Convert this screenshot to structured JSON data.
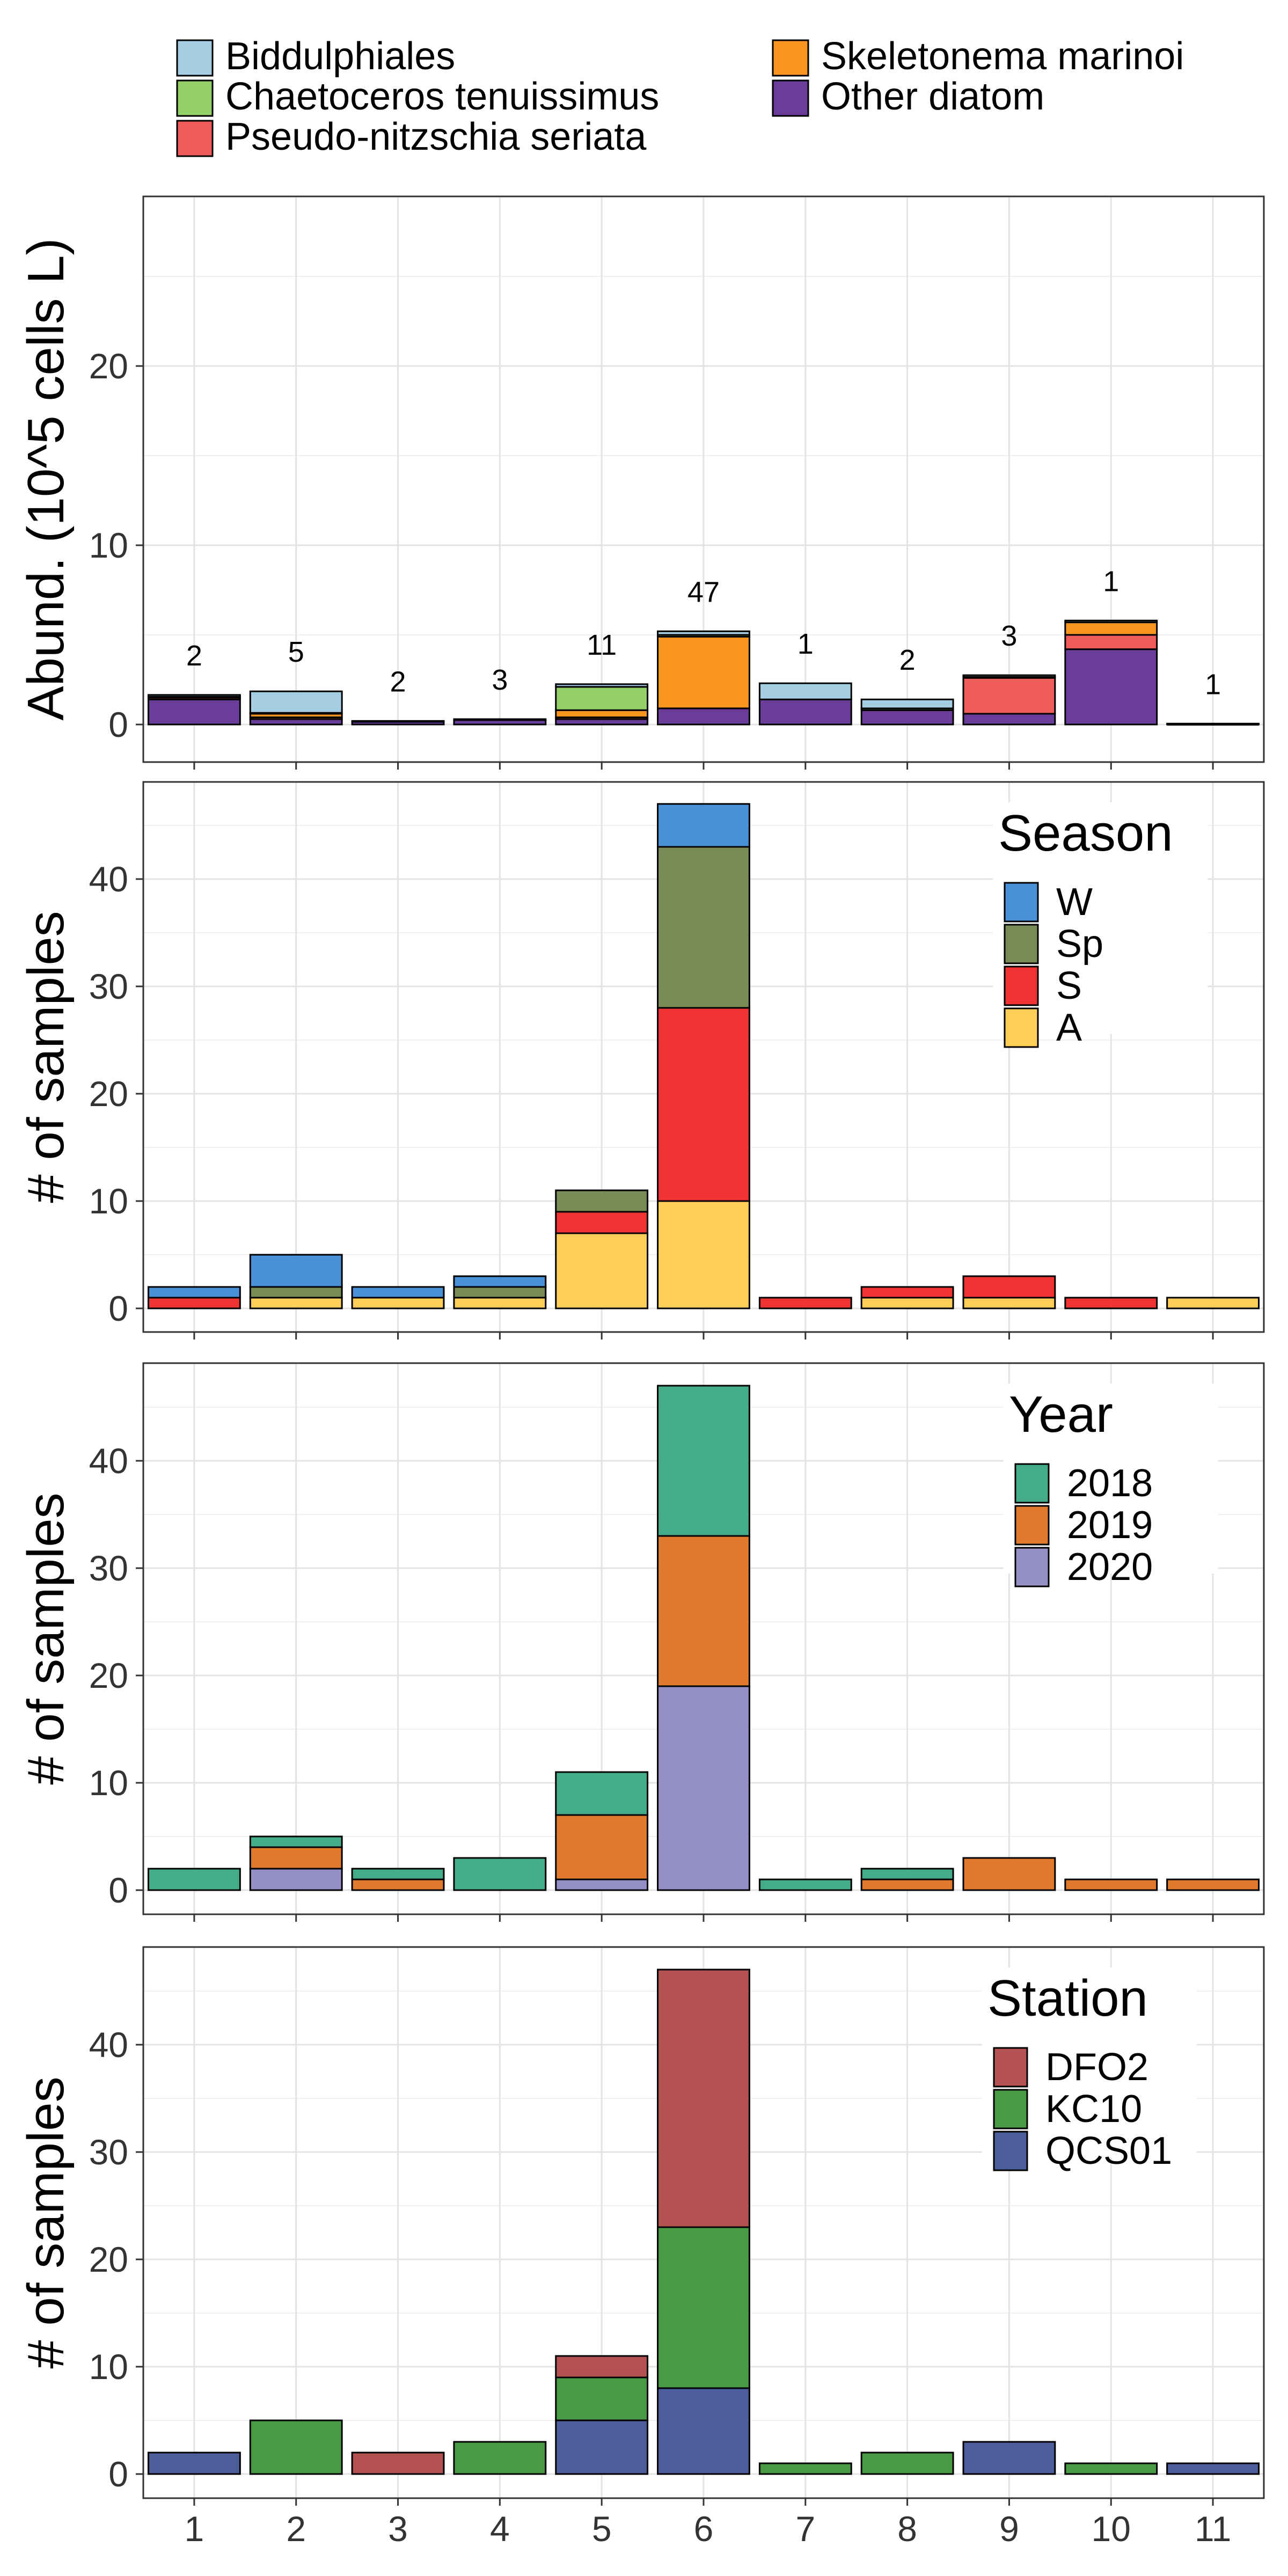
{
  "legend": {
    "items": [
      {
        "label": "Biddulphiales",
        "color": "#a6cee3"
      },
      {
        "label": "Chaetoceros tenuissimus",
        "color": "#93d06a"
      },
      {
        "label": "Pseudo-nitzschia seriata",
        "color": "#f05c5c"
      },
      {
        "label": "Skeletonema marinoi",
        "color": "#fb9522"
      },
      {
        "label": "Other diatom",
        "color": "#6a3d9a"
      }
    ]
  },
  "chart_data": [
    {
      "type": "bar",
      "stacked": true,
      "categories": [
        "1",
        "2",
        "3",
        "4",
        "5",
        "6",
        "7",
        "8",
        "9",
        "10",
        "11"
      ],
      "ylabel": "Abund. (10^5 cells L)",
      "ylim": [
        -0.8,
        30
      ],
      "yticks": [
        0,
        10,
        20
      ],
      "grid": true,
      "bar_labels": [
        "2",
        "5",
        "2",
        "3",
        "11",
        "47",
        "1",
        "2",
        "3",
        "1",
        "1"
      ],
      "series": [
        {
          "name": "Other diatom",
          "values": [
            1.4,
            0.3,
            0.15,
            0.25,
            0.3,
            0.9,
            1.4,
            0.8,
            0.6,
            4.2,
            0.05
          ]
        },
        {
          "name": "Pseudo-nitzschia seriata",
          "values": [
            0.1,
            0.1,
            0.05,
            0.05,
            0.1,
            0,
            0,
            0,
            2.0,
            0.8,
            0
          ]
        },
        {
          "name": "Skeletonema marinoi",
          "values": [
            0,
            0.2,
            0,
            0,
            0.4,
            4.0,
            0,
            0,
            0,
            0.7,
            0
          ]
        },
        {
          "name": "Chaetoceros tenuissimus",
          "values": [
            0.05,
            0.05,
            0,
            0,
            1.3,
            0.1,
            0,
            0.1,
            0.05,
            0,
            0
          ]
        },
        {
          "name": "Biddulphiales",
          "values": [
            0.1,
            1.2,
            0,
            0,
            0.15,
            0.2,
            0.9,
            0.5,
            0.1,
            0.1,
            0
          ]
        }
      ]
    },
    {
      "type": "bar",
      "stacked": true,
      "categories": [
        "1",
        "2",
        "3",
        "4",
        "5",
        "6",
        "7",
        "8",
        "9",
        "10",
        "11"
      ],
      "ylabel": "# of samples",
      "ylim": [
        -2,
        47
      ],
      "yticks": [
        0,
        10,
        20,
        30,
        40
      ],
      "grid": true,
      "legend_title": "Season",
      "legend_position": "top-right",
      "series": [
        {
          "name": "A",
          "color": "#fece58",
          "values": [
            0,
            1,
            1,
            1,
            7,
            10,
            0,
            1,
            1,
            0,
            1
          ]
        },
        {
          "name": "S",
          "color": "#f03434",
          "values": [
            1,
            0,
            0,
            0,
            2,
            18,
            1,
            1,
            2,
            1,
            0
          ]
        },
        {
          "name": "Sp",
          "color": "#7a8a56",
          "values": [
            0,
            1,
            0,
            1,
            2,
            15,
            0,
            0,
            0,
            0,
            0
          ]
        },
        {
          "name": "W",
          "color": "#4a90d9",
          "values": [
            1,
            3,
            1,
            1,
            0,
            4,
            0,
            0,
            0,
            0,
            0
          ]
        }
      ],
      "legend_order": [
        "W",
        "Sp",
        "S",
        "A"
      ]
    },
    {
      "type": "bar",
      "stacked": true,
      "categories": [
        "1",
        "2",
        "3",
        "4",
        "5",
        "6",
        "7",
        "8",
        "9",
        "10",
        "11"
      ],
      "ylabel": "# of samples",
      "ylim": [
        -2,
        47
      ],
      "yticks": [
        0,
        10,
        20,
        30,
        40
      ],
      "grid": true,
      "legend_title": "Year",
      "legend_position": "top-right",
      "series": [
        {
          "name": "2020",
          "color": "#958fc7",
          "values": [
            0,
            2,
            0,
            0,
            1,
            19,
            0,
            0,
            0,
            0,
            0
          ]
        },
        {
          "name": "2019",
          "color": "#e07b2e",
          "values": [
            0,
            2,
            1,
            0,
            6,
            14,
            0,
            1,
            3,
            1,
            1
          ]
        },
        {
          "name": "2018",
          "color": "#44ab8b",
          "values": [
            2,
            1,
            1,
            3,
            4,
            14,
            1,
            1,
            0,
            0,
            0
          ]
        }
      ],
      "legend_order": [
        "2018",
        "2019",
        "2020"
      ]
    },
    {
      "type": "bar",
      "stacked": true,
      "categories": [
        "1",
        "2",
        "3",
        "4",
        "5",
        "6",
        "7",
        "8",
        "9",
        "10",
        "11"
      ],
      "xlabel": "",
      "ylabel": "# of samples",
      "ylim": [
        -2,
        47
      ],
      "yticks": [
        0,
        10,
        20,
        30,
        40
      ],
      "grid": true,
      "legend_title": "Station",
      "legend_position": "top-right",
      "series": [
        {
          "name": "QCS01",
          "color": "#4d5c9b",
          "values": [
            2,
            0,
            0,
            0,
            5,
            8,
            0,
            0,
            3,
            0,
            1
          ]
        },
        {
          "name": "KC10",
          "color": "#4a9a45",
          "values": [
            0,
            5,
            0,
            3,
            4,
            15,
            1,
            2,
            0,
            1,
            0
          ]
        },
        {
          "name": "DFO2",
          "color": "#b45252",
          "values": [
            0,
            0,
            2,
            0,
            2,
            24,
            0,
            0,
            0,
            0,
            0
          ]
        }
      ],
      "legend_order": [
        "DFO2",
        "KC10",
        "QCS01"
      ]
    }
  ]
}
